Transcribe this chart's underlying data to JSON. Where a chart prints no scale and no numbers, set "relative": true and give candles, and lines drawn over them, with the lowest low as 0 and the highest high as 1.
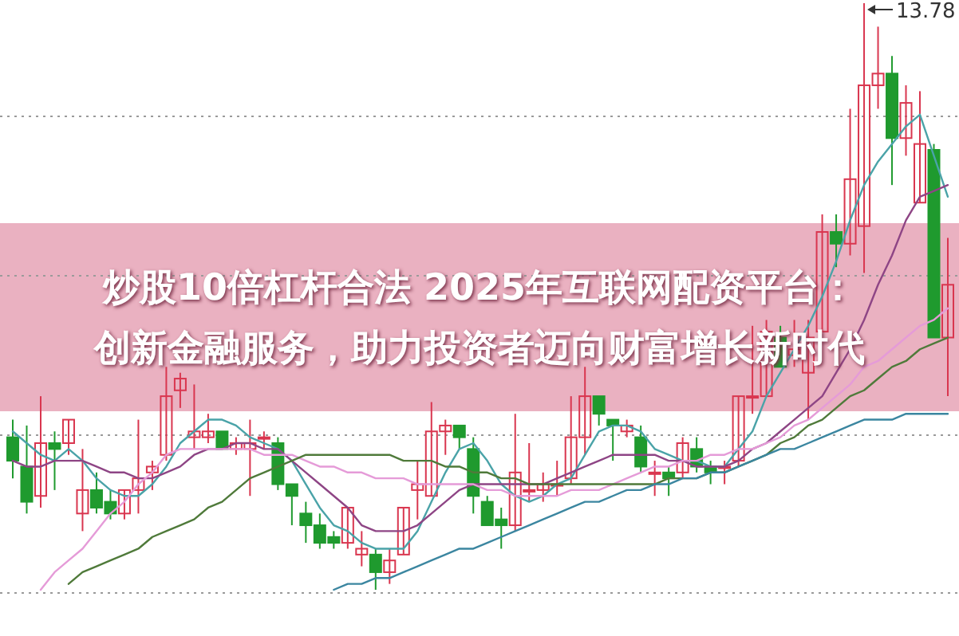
{
  "chart_data": {
    "type": "candlestick",
    "relative": true,
    "grid": true,
    "title": "炒股10倍杠杆合法 2025年互联网配资平台：",
    "subtitle": "创新金融服务，助力投资者迈向财富增长新时代",
    "annotations": [
      "13.78"
    ],
    "categories": [
      null,
      null,
      null,
      null,
      null,
      null,
      null,
      null,
      null,
      null,
      null,
      null,
      null,
      null,
      null,
      null,
      null,
      null,
      null,
      null,
      null,
      null,
      null,
      null,
      null,
      null,
      null,
      null,
      null,
      null,
      null,
      null,
      null,
      null,
      null,
      null,
      null,
      null,
      null,
      null,
      null,
      null,
      null,
      null,
      null,
      null,
      null,
      null,
      null,
      null,
      null,
      null,
      null,
      null,
      null,
      null,
      null,
      null,
      null,
      null,
      null,
      null,
      null,
      null,
      null,
      null,
      null,
      null
    ],
    "ohlc": [
      [
        0.26,
        0.29,
        0.19,
        0.22
      ],
      [
        0.21,
        0.28,
        0.13,
        0.15
      ],
      [
        0.16,
        0.33,
        0.14,
        0.25
      ],
      [
        0.25,
        0.27,
        0.17,
        0.24
      ],
      [
        0.25,
        0.29,
        0.23,
        0.29
      ],
      [
        0.13,
        0.24,
        0.1,
        0.17
      ],
      [
        0.17,
        0.2,
        0.13,
        0.14
      ],
      [
        0.15,
        0.17,
        0.12,
        0.13
      ],
      [
        0.13,
        0.17,
        0.12,
        0.17
      ],
      [
        0.17,
        0.29,
        0.13,
        0.19
      ],
      [
        0.2,
        0.22,
        0.17,
        0.21
      ],
      [
        0.23,
        0.38,
        0.22,
        0.33
      ],
      [
        0.34,
        0.37,
        0.31,
        0.36
      ],
      [
        0.26,
        0.35,
        0.24,
        0.27
      ],
      [
        0.26,
        0.3,
        0.25,
        0.27
      ],
      [
        0.27,
        0.27,
        0.24,
        0.24
      ],
      [
        0.24,
        0.26,
        0.23,
        0.25
      ],
      [
        0.24,
        0.29,
        0.16,
        0.25
      ],
      [
        0.26,
        0.27,
        0.24,
        0.26
      ],
      [
        0.25,
        0.26,
        0.17,
        0.18
      ],
      [
        0.18,
        0.18,
        0.11,
        0.16
      ],
      [
        0.13,
        0.15,
        0.08,
        0.11
      ],
      [
        0.11,
        0.13,
        0.07,
        0.08
      ],
      [
        0.09,
        0.1,
        0.07,
        0.08
      ],
      [
        0.08,
        0.14,
        0.07,
        0.14
      ],
      [
        0.06,
        0.1,
        0.04,
        0.07
      ],
      [
        0.06,
        0.07,
        0,
        0.03
      ],
      [
        0.03,
        0.07,
        0.01,
        0.05
      ],
      [
        0.06,
        0.14,
        0.06,
        0.14
      ],
      [
        0.17,
        0.22,
        0.12,
        0.18
      ],
      [
        0.16,
        0.32,
        0.16,
        0.27
      ],
      [
        0.27,
        0.29,
        0.23,
        0.28
      ],
      [
        0.28,
        0.28,
        0.24,
        0.26
      ],
      [
        0.24,
        0.26,
        0.13,
        0.16
      ],
      [
        0.15,
        0.16,
        0.11,
        0.11
      ],
      [
        0.12,
        0.14,
        0.07,
        0.11
      ],
      [
        0.11,
        0.3,
        0.1,
        0.2
      ],
      [
        0.17,
        0.25,
        0.15,
        0.17
      ],
      [
        0.17,
        0.2,
        0.15,
        0.18
      ],
      [
        0.18,
        0.22,
        0.16,
        0.18
      ],
      [
        0.19,
        0.33,
        0.18,
        0.26
      ],
      [
        0.26,
        0.38,
        0.23,
        0.33
      ],
      [
        0.33,
        0.33,
        0.28,
        0.3
      ],
      [
        0.29,
        0.29,
        0.22,
        0.28
      ],
      [
        0.27,
        0.29,
        0.26,
        0.28
      ],
      [
        0.26,
        0.28,
        0.2,
        0.21
      ],
      [
        0.2,
        0.22,
        0.16,
        0.2
      ],
      [
        0.2,
        0.21,
        0.16,
        0.19
      ],
      [
        0.2,
        0.26,
        0.19,
        0.25
      ],
      [
        0.24,
        0.26,
        0.2,
        0.21
      ],
      [
        0.21,
        0.22,
        0.18,
        0.2
      ],
      [
        0.21,
        0.22,
        0.18,
        0.21
      ],
      [
        0.22,
        0.33,
        0.21,
        0.33
      ],
      [
        0.33,
        0.45,
        0.3,
        0.33
      ],
      [
        0.33,
        0.46,
        0.33,
        0.44
      ],
      [
        0.43,
        0.45,
        0.38,
        0.38
      ],
      [
        0.4,
        0.46,
        0.38,
        0.41
      ],
      [
        0.37,
        0.46,
        0.29,
        0.43
      ],
      [
        0.44,
        0.64,
        0.44,
        0.61
      ],
      [
        0.61,
        0.64,
        0.55,
        0.59
      ],
      [
        0.59,
        0.82,
        0.57,
        0.7
      ],
      [
        0.62,
        1,
        0.54,
        0.86
      ],
      [
        0.86,
        0.96,
        0.82,
        0.88
      ],
      [
        0.88,
        0.91,
        0.69,
        0.77
      ],
      [
        0.77,
        0.86,
        0.74,
        0.83
      ],
      [
        0.66,
        0.85,
        0.66,
        0.76
      ],
      [
        0.75,
        0.76,
        0.43,
        0.43
      ],
      [
        0.43,
        0.6,
        0.33,
        0.52
      ]
    ],
    "series": [
      {
        "type": "line",
        "color": "#4aa3a8",
        "values": [
          0.27,
          0.25,
          0.23,
          0.22,
          0.24,
          0.22,
          0.19,
          0.17,
          0.16,
          0.16,
          0.18,
          0.21,
          0.25,
          0.27,
          0.29,
          0.29,
          0.28,
          0.26,
          0.25,
          0.24,
          0.22,
          0.18,
          0.14,
          0.11,
          0.1,
          0.08,
          0.07,
          0.07,
          0.07,
          0.1,
          0.15,
          0.2,
          0.24,
          0.25,
          0.22,
          0.18,
          0.16,
          0.15,
          0.16,
          0.18,
          0.19,
          0.23,
          0.27,
          0.28,
          0.28,
          0.27,
          0.24,
          0.23,
          0.22,
          0.22,
          0.21,
          0.21,
          0.24,
          0.27,
          0.33,
          0.37,
          0.41,
          0.45,
          0.5,
          0.56,
          0.63,
          0.69,
          0.73,
          0.76,
          0.79,
          0.81,
          0.74,
          0.67
        ]
      },
      {
        "type": "line",
        "color": "#8e4585",
        "values": [
          0.22,
          0.21,
          0.21,
          0.22,
          0.22,
          0.22,
          0.21,
          0.2,
          0.2,
          0.19,
          0.19,
          0.2,
          0.21,
          0.23,
          0.24,
          0.24,
          0.25,
          0.25,
          0.24,
          0.24,
          0.22,
          0.2,
          0.18,
          0.16,
          0.14,
          0.11,
          0.1,
          0.1,
          0.1,
          0.11,
          0.13,
          0.15,
          0.17,
          0.18,
          0.18,
          0.18,
          0.18,
          0.18,
          0.18,
          0.19,
          0.2,
          0.21,
          0.22,
          0.23,
          0.23,
          0.23,
          0.23,
          0.22,
          0.22,
          0.21,
          0.21,
          0.21,
          0.22,
          0.24,
          0.25,
          0.27,
          0.29,
          0.31,
          0.33,
          0.37,
          0.41,
          0.46,
          0.52,
          0.57,
          0.63,
          0.67,
          0.68,
          0.69
        ]
      },
      {
        "type": "line",
        "color": "#e59bd8",
        "values": [
          null,
          null,
          0,
          0.03,
          0.05,
          0.07,
          0.1,
          0.13,
          0.15,
          0.18,
          0.2,
          0.23,
          0.24,
          0.24,
          0.24,
          0.24,
          0.24,
          0.24,
          0.23,
          0.23,
          0.23,
          0.22,
          0.21,
          0.21,
          0.2,
          0.2,
          0.19,
          0.19,
          0.19,
          0.18,
          0.18,
          0.18,
          0.18,
          0.18,
          0.17,
          0.17,
          0.16,
          0.16,
          0.16,
          0.16,
          0.17,
          0.17,
          0.17,
          0.18,
          0.19,
          0.2,
          0.21,
          0.21,
          0.22,
          0.22,
          0.23,
          0.23,
          0.24,
          0.24,
          0.25,
          0.26,
          0.28,
          0.29,
          0.31,
          0.33,
          0.35,
          0.38,
          0.39,
          0.41,
          0.43,
          0.45,
          0.46,
          0.48
        ]
      },
      {
        "type": "line",
        "color": "#4f7a3a",
        "values": [
          null,
          null,
          null,
          null,
          0.01,
          0.03,
          0.04,
          0.05,
          0.06,
          0.07,
          0.09,
          0.1,
          0.11,
          0.12,
          0.14,
          0.15,
          0.17,
          0.19,
          0.2,
          0.21,
          0.22,
          0.23,
          0.23,
          0.23,
          0.23,
          0.23,
          0.23,
          0.23,
          0.22,
          0.22,
          0.22,
          0.21,
          0.21,
          0.2,
          0.2,
          0.19,
          0.19,
          0.18,
          0.18,
          0.18,
          0.18,
          0.18,
          0.18,
          0.18,
          0.18,
          0.18,
          0.18,
          0.19,
          0.19,
          0.19,
          0.2,
          0.2,
          0.21,
          0.22,
          0.23,
          0.25,
          0.26,
          0.28,
          0.29,
          0.31,
          0.33,
          0.34,
          0.36,
          0.38,
          0.39,
          0.41,
          0.42,
          0.43
        ]
      },
      {
        "type": "line",
        "color": "#3b86a0",
        "values": [
          null,
          null,
          null,
          null,
          null,
          null,
          null,
          null,
          null,
          null,
          null,
          null,
          null,
          null,
          null,
          null,
          null,
          null,
          null,
          null,
          null,
          null,
          null,
          0,
          0.01,
          0.01,
          0.02,
          0.02,
          0.03,
          0.04,
          0.05,
          0.06,
          0.07,
          0.07,
          0.08,
          0.09,
          0.1,
          0.11,
          0.12,
          0.13,
          0.14,
          0.15,
          0.15,
          0.16,
          0.17,
          0.17,
          0.18,
          0.18,
          0.19,
          0.19,
          0.2,
          0.2,
          0.21,
          0.22,
          0.23,
          0.24,
          0.24,
          0.25,
          0.26,
          0.27,
          0.28,
          0.29,
          0.29,
          0.29,
          0.3,
          0.3,
          0.3,
          0.3
        ]
      }
    ]
  }
}
